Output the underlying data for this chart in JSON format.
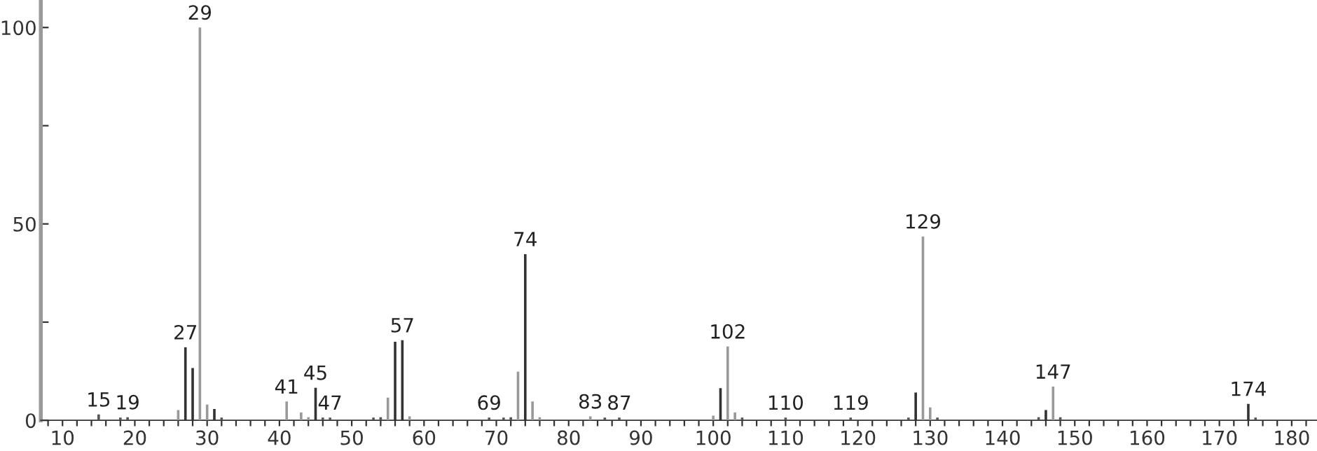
{
  "chart_data": {
    "type": "bar",
    "x": [
      15,
      18,
      19,
      26,
      27,
      28,
      29,
      30,
      31,
      32,
      41,
      43,
      44,
      45,
      46,
      47,
      53,
      54,
      55,
      56,
      57,
      58,
      69,
      71,
      72,
      73,
      74,
      75,
      76,
      83,
      85,
      87,
      100,
      101,
      102,
      103,
      104,
      110,
      119,
      127,
      128,
      129,
      130,
      131,
      145,
      146,
      147,
      148,
      174,
      175
    ],
    "values": [
      1.5,
      0.7,
      0.8,
      2.6,
      18.6,
      13.3,
      100,
      4,
      2.9,
      0.7,
      4.8,
      2,
      0.8,
      8.3,
      0.7,
      0.7,
      0.7,
      0.8,
      5.8,
      20,
      20.4,
      1,
      0.7,
      0.7,
      0.8,
      12.4,
      42.3,
      4.8,
      0.8,
      1,
      0.7,
      0.7,
      1.2,
      8.2,
      18.8,
      2,
      0.7,
      0.7,
      0.7,
      0.7,
      7.1,
      46.8,
      3.3,
      0.7,
      0.8,
      2.6,
      8.6,
      0.8,
      4.2,
      0.7
    ],
    "colors": [
      "#555555",
      "#555555",
      "#555555",
      "#999999",
      "#333333",
      "#333333",
      "#999999",
      "#999999",
      "#333333",
      "#555555",
      "#999999",
      "#999999",
      "#999999",
      "#333333",
      "#555555",
      "#555555",
      "#555555",
      "#555555",
      "#999999",
      "#333333",
      "#333333",
      "#999999",
      "#555555",
      "#555555",
      "#555555",
      "#999999",
      "#333333",
      "#999999",
      "#999999",
      "#999999",
      "#555555",
      "#555555",
      "#999999",
      "#333333",
      "#999999",
      "#999999",
      "#555555",
      "#555555",
      "#555555",
      "#555555",
      "#333333",
      "#999999",
      "#999999",
      "#555555",
      "#555555",
      "#333333",
      "#999999",
      "#555555",
      "#333333",
      "#555555"
    ],
    "xlim": [
      7,
      183.5
    ],
    "ylim": [
      0,
      107
    ],
    "xticks": [
      {
        "value": 8,
        "label": null
      },
      10,
      {
        "value": 12,
        "label": null
      },
      {
        "value": 14,
        "label": null
      },
      {
        "value": 16,
        "label": null
      },
      {
        "value": 18,
        "label": null
      },
      20,
      {
        "value": 22,
        "label": null
      },
      {
        "value": 24,
        "label": null
      },
      {
        "value": 26,
        "label": null
      },
      {
        "value": 28,
        "label": null
      },
      30,
      {
        "value": 32,
        "label": null
      },
      {
        "value": 34,
        "label": null
      },
      {
        "value": 36,
        "label": null
      },
      {
        "value": 38,
        "label": null
      },
      40,
      {
        "value": 42,
        "label": null
      },
      {
        "value": 44,
        "label": null
      },
      {
        "value": 46,
        "label": null
      },
      {
        "value": 48,
        "label": null
      },
      50,
      {
        "value": 52,
        "label": null
      },
      {
        "value": 54,
        "label": null
      },
      {
        "value": 56,
        "label": null
      },
      {
        "value": 58,
        "label": null
      },
      60,
      {
        "value": 62,
        "label": null
      },
      {
        "value": 64,
        "label": null
      },
      {
        "value": 66,
        "label": null
      },
      {
        "value": 68,
        "label": null
      },
      70,
      {
        "value": 72,
        "label": null
      },
      {
        "value": 74,
        "label": null
      },
      {
        "value": 76,
        "label": null
      },
      {
        "value": 78,
        "label": null
      },
      80,
      {
        "value": 82,
        "label": null
      },
      {
        "value": 84,
        "label": null
      },
      {
        "value": 86,
        "label": null
      },
      {
        "value": 88,
        "label": null
      },
      90,
      {
        "value": 92,
        "label": null
      },
      {
        "value": 94,
        "label": null
      },
      {
        "value": 96,
        "label": null
      },
      {
        "value": 98,
        "label": null
      },
      100,
      {
        "value": 102,
        "label": null
      },
      {
        "value": 104,
        "label": null
      },
      {
        "value": 106,
        "label": null
      },
      {
        "value": 108,
        "label": null
      },
      110,
      {
        "value": 112,
        "label": null
      },
      {
        "value": 114,
        "label": null
      },
      {
        "value": 116,
        "label": null
      },
      {
        "value": 118,
        "label": null
      },
      120,
      {
        "value": 122,
        "label": null
      },
      {
        "value": 124,
        "label": null
      },
      {
        "value": 126,
        "label": null
      },
      {
        "value": 128,
        "label": null
      },
      130,
      {
        "value": 132,
        "label": null
      },
      {
        "value": 134,
        "label": null
      },
      {
        "value": 136,
        "label": null
      },
      {
        "value": 138,
        "label": null
      },
      140,
      {
        "value": 142,
        "label": null
      },
      {
        "value": 144,
        "label": null
      },
      {
        "value": 146,
        "label": null
      },
      {
        "value": 148,
        "label": null
      },
      150,
      {
        "value": 152,
        "label": null
      },
      {
        "value": 154,
        "label": null
      },
      {
        "value": 156,
        "label": null
      },
      {
        "value": 158,
        "label": null
      },
      160,
      {
        "value": 162,
        "label": null
      },
      {
        "value": 164,
        "label": null
      },
      {
        "value": 166,
        "label": null
      },
      {
        "value": 168,
        "label": null
      },
      170,
      {
        "value": 172,
        "label": null
      },
      {
        "value": 174,
        "label": null
      },
      {
        "value": 176,
        "label": null
      },
      {
        "value": 178,
        "label": null
      },
      180,
      {
        "value": 182,
        "label": null
      }
    ],
    "yticks": [
      0,
      {
        "value": 25,
        "label": null
      },
      50,
      {
        "value": 75,
        "label": null
      },
      100
    ],
    "grid": false,
    "annotations": [
      {
        "text": "15",
        "x": 15,
        "y": 1.5
      },
      {
        "text": "19",
        "x": 19,
        "y": 0.8
      },
      {
        "text": "27",
        "x": 27,
        "y": 18.6
      },
      {
        "text": "29",
        "x": 29,
        "y": 100
      },
      {
        "text": "41",
        "x": 41,
        "y": 4.8
      },
      {
        "text": "45",
        "x": 45,
        "y": 8.3
      },
      {
        "text": "47",
        "x": 47,
        "y": 0.7
      },
      {
        "text": "57",
        "x": 57,
        "y": 20.4
      },
      {
        "text": "69",
        "x": 69,
        "y": 0.7
      },
      {
        "text": "74",
        "x": 74,
        "y": 42.3
      },
      {
        "text": "83",
        "x": 83,
        "y": 1
      },
      {
        "text": "87",
        "x": 87,
        "y": 0.7
      },
      {
        "text": "102",
        "x": 102,
        "y": 18.8
      },
      {
        "text": "110",
        "x": 110,
        "y": 0.7
      },
      {
        "text": "119",
        "x": 119,
        "y": 0.7
      },
      {
        "text": "129",
        "x": 129,
        "y": 46.8
      },
      {
        "text": "147",
        "x": 147,
        "y": 8.6
      },
      {
        "text": "174",
        "x": 174,
        "y": 4.2
      }
    ]
  }
}
